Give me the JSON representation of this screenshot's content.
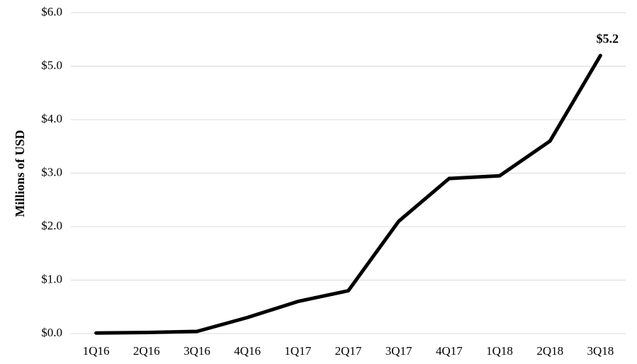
{
  "chart_data": {
    "type": "line",
    "y_label": "Millions of USD",
    "categories": [
      "1Q16",
      "2Q16",
      "3Q16",
      "4Q16",
      "1Q17",
      "2Q17",
      "3Q17",
      "4Q17",
      "1Q18",
      "2Q18",
      "3Q18"
    ],
    "values": [
      0.01,
      0.02,
      0.04,
      0.3,
      0.6,
      0.8,
      2.1,
      2.9,
      2.95,
      3.6,
      5.2
    ],
    "value_labels": [
      null,
      null,
      null,
      null,
      null,
      null,
      null,
      null,
      null,
      null,
      "$5.2"
    ],
    "color": "#000000",
    "ylim": [
      0,
      6
    ],
    "yticks": [
      {
        "value": 0,
        "label": "$0.0"
      },
      {
        "value": 1,
        "label": "$1.0"
      },
      {
        "value": 2,
        "label": "$2.0"
      },
      {
        "value": 3,
        "label": "$3.0"
      },
      {
        "value": 4,
        "label": "$4.0"
      },
      {
        "value": 5,
        "label": "$5.0"
      },
      {
        "value": 6,
        "label": "$6.0"
      }
    ],
    "grid": true
  }
}
